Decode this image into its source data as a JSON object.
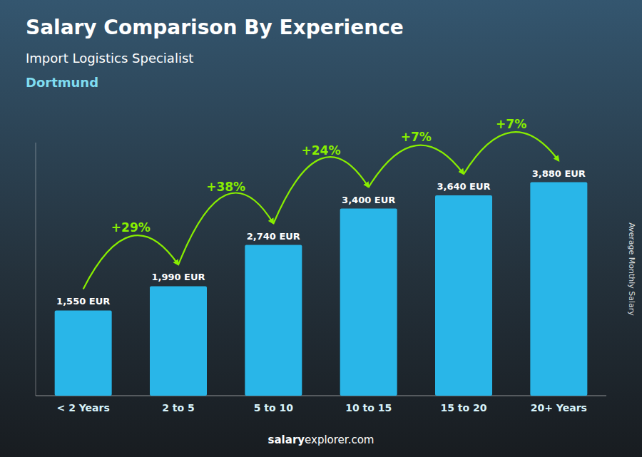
{
  "chart_data": {
    "type": "bar",
    "title": "Salary Comparison By Experience",
    "subtitle": "Import Logistics Specialist",
    "city": "Dortmund",
    "ylabel": "Average Monthly Salary",
    "footer": [
      "salary",
      "explorer.com"
    ],
    "categories": [
      "< 2 Years",
      "2 to 5",
      "5 to 10",
      "10 to 15",
      "15 to 20",
      "20+ Years"
    ],
    "values": [
      1550,
      1990,
      2740,
      3400,
      3640,
      3880
    ],
    "value_labels": [
      "1,550 EUR",
      "1,990 EUR",
      "2,740 EUR",
      "3,400 EUR",
      "3,640 EUR",
      "3,880 EUR"
    ],
    "color": "#29b6e8",
    "data_labels": true,
    "ylim": [
      0,
      4600
    ],
    "tick_labels": "x",
    "grid": false,
    "annotations": [
      null,
      {
        "text": "+29%",
        "color": "#88ee00"
      },
      {
        "text": "+38%",
        "color": "#88ee00"
      },
      {
        "text": "+24%",
        "color": "#88ee00"
      },
      {
        "text": "+7%",
        "color": "#88ee00"
      },
      {
        "text": "+7%",
        "color": "#88ee00"
      }
    ]
  }
}
